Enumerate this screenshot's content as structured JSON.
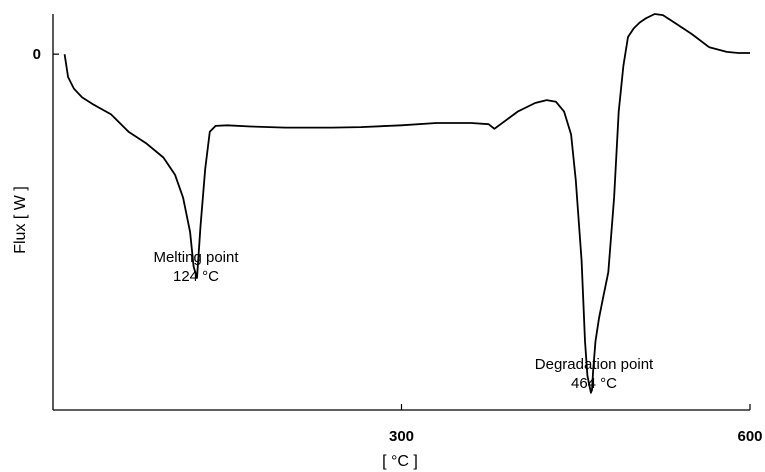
{
  "chart_data": {
    "type": "line",
    "title": "",
    "xlabel": "[ °C ]",
    "ylabel": "Flux [ W ]",
    "xlim": [
      0,
      600
    ],
    "ylim": [
      -0.62,
      0.07
    ],
    "x_ticks": [
      {
        "value": 300,
        "label": "300"
      },
      {
        "value": 600,
        "label": "600"
      }
    ],
    "y_ticks": [
      {
        "value": 0,
        "label": "0"
      }
    ],
    "grid": false,
    "legend": "none",
    "series": [
      {
        "color": "#000000",
        "x": [
          10,
          13,
          18,
          25,
          35,
          50,
          65,
          80,
          95,
          105,
          112,
          118,
          121,
          124,
          127,
          131,
          135,
          140,
          150,
          170,
          200,
          240,
          265,
          300,
          330,
          360,
          375,
          380,
          390,
          400,
          415,
          425,
          433,
          440,
          446,
          450,
          455,
          458,
          460,
          462,
          463,
          464,
          465,
          467,
          470,
          474,
          478,
          483,
          487,
          491,
          495,
          500,
          505,
          510,
          518,
          525,
          535,
          550,
          565,
          580,
          590,
          600
        ],
        "y": [
          0,
          -0.04,
          -0.06,
          -0.075,
          -0.088,
          -0.105,
          -0.135,
          -0.155,
          -0.18,
          -0.21,
          -0.25,
          -0.31,
          -0.37,
          -0.39,
          -0.3,
          -0.2,
          -0.135,
          -0.125,
          -0.124,
          -0.126,
          -0.128,
          -0.128,
          -0.127,
          -0.124,
          -0.12,
          -0.12,
          -0.122,
          -0.13,
          -0.115,
          -0.1,
          -0.085,
          -0.08,
          -0.083,
          -0.1,
          -0.14,
          -0.22,
          -0.36,
          -0.5,
          -0.56,
          -0.58,
          -0.59,
          -0.585,
          -0.55,
          -0.5,
          -0.46,
          -0.42,
          -0.38,
          -0.25,
          -0.1,
          -0.02,
          0.03,
          0.045,
          0.055,
          0.062,
          0.07,
          0.068,
          0.055,
          0.035,
          0.012,
          0.004,
          0.002,
          0.002
        ]
      }
    ],
    "annotations": [
      {
        "text": "Melting point",
        "value_text": "124 °C",
        "x": 124,
        "y": -0.39
      },
      {
        "text": "Degradation point",
        "value_text": "464 °C",
        "x": 464,
        "y": -0.59
      }
    ]
  }
}
